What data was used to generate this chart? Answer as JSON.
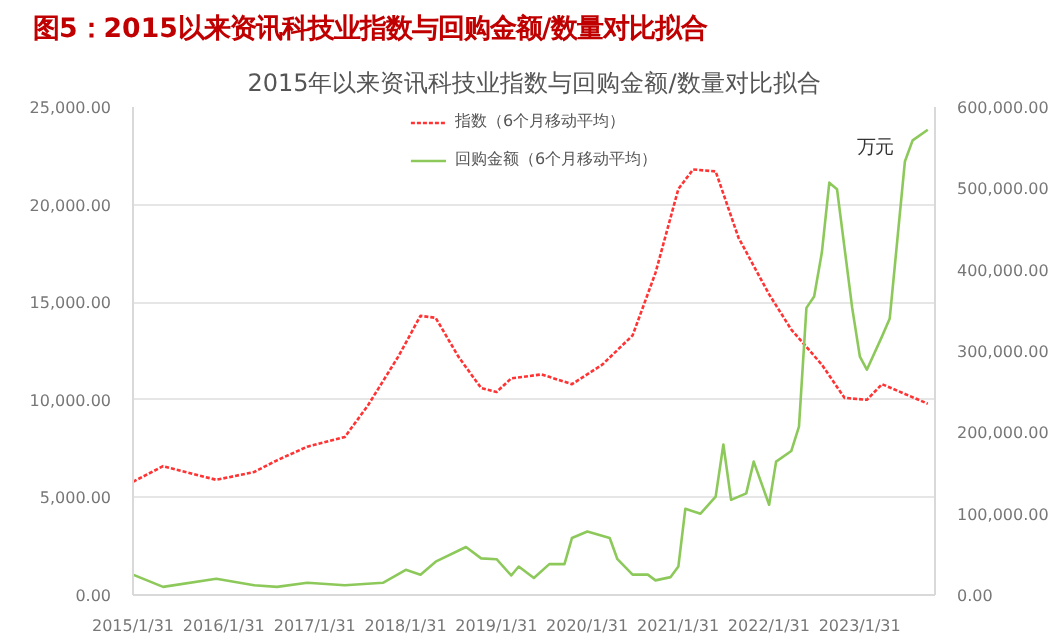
{
  "chart_data": {
    "type": "line",
    "title": "图5：2015以来资讯科技业指数与回购金额/数量对比拟合",
    "subtitle": "2015年以来资讯科技业指数与回购金额/数量对比拟合",
    "annotations": [
      "万元"
    ],
    "xlim": [
      "2015-01-31",
      "2023-11-30"
    ],
    "xticks": [
      {
        "value": "2015-01-31",
        "label": "2015/1/31"
      },
      {
        "value": "2016-01-31",
        "label": "2016/1/31"
      },
      {
        "value": "2017-01-31",
        "label": "2017/1/31"
      },
      {
        "value": "2018-01-31",
        "label": "2018/1/31"
      },
      {
        "value": "2019-01-31",
        "label": "2019/1/31"
      },
      {
        "value": "2020-01-31",
        "label": "2020/1/31"
      },
      {
        "value": "2021-01-31",
        "label": "2021/1/31"
      },
      {
        "value": "2022-01-31",
        "label": "2022/1/31"
      },
      {
        "value": "2023-01-31",
        "label": "2023/1/31"
      }
    ],
    "ylim": [
      0,
      25000
    ],
    "yticks": [
      {
        "value": 0,
        "label": "0.00"
      },
      {
        "value": 5000,
        "label": "5,000.00"
      },
      {
        "value": 10000,
        "label": "10,000.00"
      },
      {
        "value": 15000,
        "label": "15,000.00"
      },
      {
        "value": 20000,
        "label": "20,000.00"
      },
      {
        "value": 25000,
        "label": "25,000.00"
      }
    ],
    "y2lim": [
      0,
      600000
    ],
    "y2ticks": [
      {
        "value": 0,
        "label": "0.00"
      },
      {
        "value": 100000,
        "label": "100,000.00"
      },
      {
        "value": 200000,
        "label": "200,000.00"
      },
      {
        "value": 300000,
        "label": "300,000.00"
      },
      {
        "value": 400000,
        "label": "400,000.00"
      },
      {
        "value": 500000,
        "label": "500,000.00"
      },
      {
        "value": 600000,
        "label": "600,000.00"
      }
    ],
    "grid": "y",
    "legend": "top",
    "series": [
      {
        "name": "指数（6个月移动平均）",
        "color": "#ff3333",
        "line_style": "dotted",
        "x": [
          "2015-01-31",
          "2015-06",
          "2016-01",
          "2016-06",
          "2016-09",
          "2017-01",
          "2017-06",
          "2017-09",
          "2018-01",
          "2018-04",
          "2018-06",
          "2018-09",
          "2018-12",
          "2019-02",
          "2019-04",
          "2019-08",
          "2019-12",
          "2020-04",
          "2020-08",
          "2020-11",
          "2021-02",
          "2021-04",
          "2021-07",
          "2021-10",
          "2022-02",
          "2022-05",
          "2022-09",
          "2022-12",
          "2023-03",
          "2023-05",
          "2023-08",
          "2023-11"
        ],
        "values": [
          5800,
          6600,
          5900,
          6300,
          6900,
          7600,
          8100,
          9700,
          12200,
          14300,
          14200,
          12200,
          10600,
          10400,
          11100,
          11300,
          10800,
          11800,
          13300,
          16500,
          20800,
          21800,
          21700,
          18300,
          15400,
          13600,
          11800,
          10100,
          10000,
          10800,
          10300,
          9800
        ]
      },
      {
        "name": "回购金额（6个月移动平均）",
        "color": "#8dc95a",
        "line_style": "solid",
        "axis": "y2",
        "x": [
          "2015-01-31",
          "2015-06",
          "2016-01",
          "2016-06",
          "2016-09",
          "2017-01",
          "2017-06",
          "2017-11",
          "2018-02",
          "2018-04",
          "2018-06",
          "2018-10",
          "2018-12",
          "2019-02",
          "2019-04",
          "2019-05",
          "2019-07",
          "2019-09",
          "2019-11",
          "2019-12",
          "2020-02",
          "2020-05",
          "2020-06",
          "2020-08",
          "2020-10",
          "2020-11",
          "2021-01",
          "2021-02",
          "2021-03",
          "2021-05",
          "2021-07",
          "2021-08",
          "2021-09",
          "2021-11",
          "2021-12",
          "2022-02",
          "2022-03",
          "2022-05",
          "2022-06",
          "2022-07",
          "2022-08",
          "2022-09",
          "2022-10",
          "2022-11",
          "2023-01",
          "2023-02",
          "2023-03",
          "2023-05",
          "2023-06",
          "2023-08",
          "2023-09",
          "2023-11"
        ],
        "values": [
          25000,
          10000,
          20000,
          12000,
          10000,
          15000,
          12000,
          15000,
          31000,
          25000,
          41000,
          59000,
          45000,
          44000,
          24000,
          35000,
          21000,
          38000,
          38000,
          70000,
          78000,
          70000,
          44000,
          25000,
          25000,
          18000,
          22000,
          35000,
          106000,
          100000,
          121000,
          185000,
          117000,
          125000,
          164000,
          111000,
          164000,
          177000,
          207000,
          353000,
          367000,
          421000,
          507000,
          499000,
          353000,
          293000,
          277000,
          318000,
          340000,
          533000,
          559000,
          572000
        ]
      }
    ]
  }
}
